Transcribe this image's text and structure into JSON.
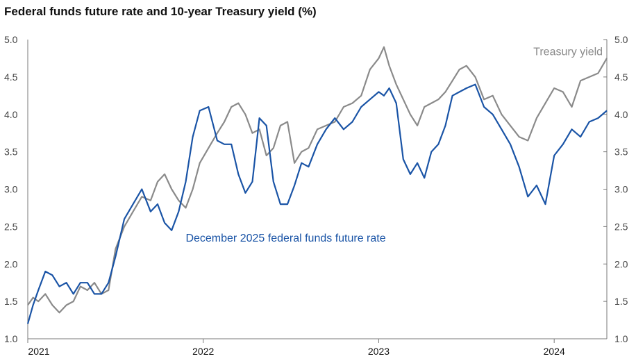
{
  "chart_data": {
    "type": "line",
    "title": "Federal funds future rate and 10-year Treasury yield (%)",
    "ylim": [
      1.0,
      5.0
    ],
    "y_ticks": [
      "1.0",
      "1.5",
      "2.0",
      "2.5",
      "3.0",
      "3.5",
      "4.0",
      "4.5",
      "5.0"
    ],
    "x_ticks": [
      "2021",
      "2022",
      "2023",
      "2024"
    ],
    "xlim": [
      2021.0,
      2024.3
    ],
    "grid": false,
    "colors": {
      "treasury": "#8a8a8a",
      "fed_funds": "#1a54a6",
      "axis": "#7a7a7a"
    },
    "series": [
      {
        "name": "Treasury yield",
        "color": "#8a8a8a",
        "x": [
          2021.0,
          2021.03,
          2021.06,
          2021.1,
          2021.14,
          2021.18,
          2021.22,
          2021.26,
          2021.3,
          2021.34,
          2021.38,
          2021.42,
          2021.46,
          2021.5,
          2021.55,
          2021.6,
          2021.65,
          2021.7,
          2021.74,
          2021.78,
          2021.82,
          2021.86,
          2021.9,
          2021.94,
          2021.98,
          2022.03,
          2022.08,
          2022.12,
          2022.16,
          2022.2,
          2022.24,
          2022.28,
          2022.32,
          2022.36,
          2022.4,
          2022.44,
          2022.48,
          2022.52,
          2022.56,
          2022.6,
          2022.65,
          2022.7,
          2022.75,
          2022.8,
          2022.85,
          2022.9,
          2022.95,
          2023.0,
          2023.03,
          2023.06,
          2023.1,
          2023.14,
          2023.18,
          2023.22,
          2023.26,
          2023.3,
          2023.34,
          2023.38,
          2023.42,
          2023.46,
          2023.5,
          2023.55,
          2023.6,
          2023.65,
          2023.7,
          2023.75,
          2023.8,
          2023.85,
          2023.9,
          2023.95,
          2024.0,
          2024.05,
          2024.1,
          2024.15,
          2024.2,
          2024.25,
          2024.3
        ],
        "values": [
          1.45,
          1.55,
          1.5,
          1.6,
          1.45,
          1.35,
          1.45,
          1.5,
          1.7,
          1.65,
          1.75,
          1.6,
          1.65,
          2.2,
          2.5,
          2.7,
          2.9,
          2.85,
          3.1,
          3.2,
          3.0,
          2.85,
          2.75,
          3.0,
          3.35,
          3.55,
          3.75,
          3.9,
          4.1,
          4.15,
          4.0,
          3.75,
          3.8,
          3.45,
          3.55,
          3.85,
          3.9,
          3.35,
          3.5,
          3.55,
          3.8,
          3.85,
          3.9,
          4.1,
          4.15,
          4.25,
          4.6,
          4.75,
          4.9,
          4.65,
          4.4,
          4.2,
          4.0,
          3.85,
          4.1,
          4.15,
          4.2,
          4.3,
          4.45,
          4.6,
          4.65,
          4.5,
          4.2,
          4.25,
          4.0,
          3.85,
          3.7,
          3.65,
          3.95,
          4.15,
          4.35,
          4.3,
          4.1,
          4.45,
          4.5,
          4.55,
          4.75
        ]
      },
      {
        "name": "December 2025 federal funds future rate",
        "color": "#1a54a6",
        "x": [
          2021.0,
          2021.03,
          2021.06,
          2021.1,
          2021.14,
          2021.18,
          2021.22,
          2021.26,
          2021.3,
          2021.34,
          2021.38,
          2021.42,
          2021.46,
          2021.5,
          2021.55,
          2021.6,
          2021.65,
          2021.7,
          2021.74,
          2021.78,
          2021.82,
          2021.86,
          2021.9,
          2021.94,
          2021.98,
          2022.03,
          2022.08,
          2022.12,
          2022.16,
          2022.2,
          2022.24,
          2022.28,
          2022.32,
          2022.36,
          2022.4,
          2022.44,
          2022.48,
          2022.52,
          2022.56,
          2022.6,
          2022.65,
          2022.7,
          2022.75,
          2022.8,
          2022.85,
          2022.9,
          2022.95,
          2023.0,
          2023.03,
          2023.06,
          2023.1,
          2023.14,
          2023.18,
          2023.22,
          2023.26,
          2023.3,
          2023.34,
          2023.38,
          2023.42,
          2023.46,
          2023.5,
          2023.55,
          2023.6,
          2023.65,
          2023.7,
          2023.75,
          2023.8,
          2023.85,
          2023.9,
          2023.95,
          2024.0,
          2024.05,
          2024.1,
          2024.15,
          2024.2,
          2024.25,
          2024.3
        ],
        "values": [
          1.2,
          1.45,
          1.65,
          1.9,
          1.85,
          1.7,
          1.75,
          1.6,
          1.75,
          1.75,
          1.6,
          1.6,
          1.75,
          2.1,
          2.6,
          2.8,
          3.0,
          2.7,
          2.8,
          2.55,
          2.45,
          2.7,
          3.1,
          3.7,
          4.05,
          4.1,
          3.65,
          3.6,
          3.6,
          3.2,
          2.95,
          3.1,
          3.95,
          3.85,
          3.1,
          2.8,
          2.8,
          3.05,
          3.35,
          3.3,
          3.6,
          3.8,
          3.95,
          3.8,
          3.9,
          4.1,
          4.2,
          4.3,
          4.25,
          4.35,
          4.15,
          3.4,
          3.2,
          3.35,
          3.15,
          3.5,
          3.6,
          3.85,
          4.25,
          4.3,
          4.35,
          4.4,
          4.1,
          4.0,
          3.8,
          3.6,
          3.3,
          2.9,
          3.05,
          2.8,
          3.45,
          3.6,
          3.8,
          3.7,
          3.9,
          3.95,
          4.05
        ]
      }
    ],
    "annotations": [
      {
        "text": "Treasury yield",
        "series": "Treasury yield",
        "x": 2024.0,
        "y": 4.79
      },
      {
        "text": "December 2025 federal funds future rate",
        "series": "December 2025 federal funds future rate",
        "x": 2021.9,
        "y": 2.3
      }
    ]
  }
}
